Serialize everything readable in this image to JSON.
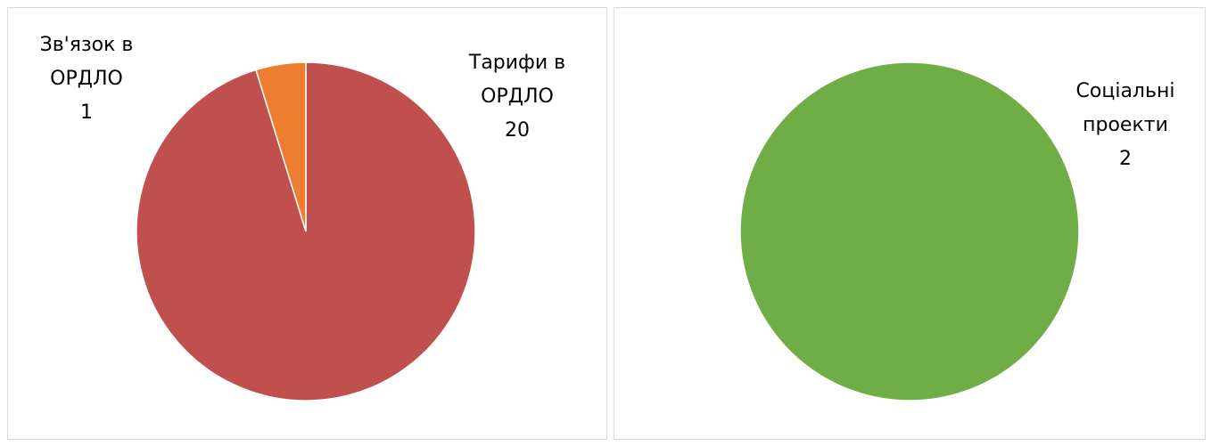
{
  "chart_data": [
    {
      "type": "pie",
      "categories": [
        "Тарифи в ОРДЛО",
        "Зв'язок в ОРДЛО"
      ],
      "values": [
        20,
        1
      ],
      "colors": [
        "#c0504d",
        "#ed7d31"
      ]
    },
    {
      "type": "pie",
      "categories": [
        "Соціальні проекти"
      ],
      "values": [
        2
      ],
      "colors": [
        "#70ad47"
      ]
    }
  ]
}
